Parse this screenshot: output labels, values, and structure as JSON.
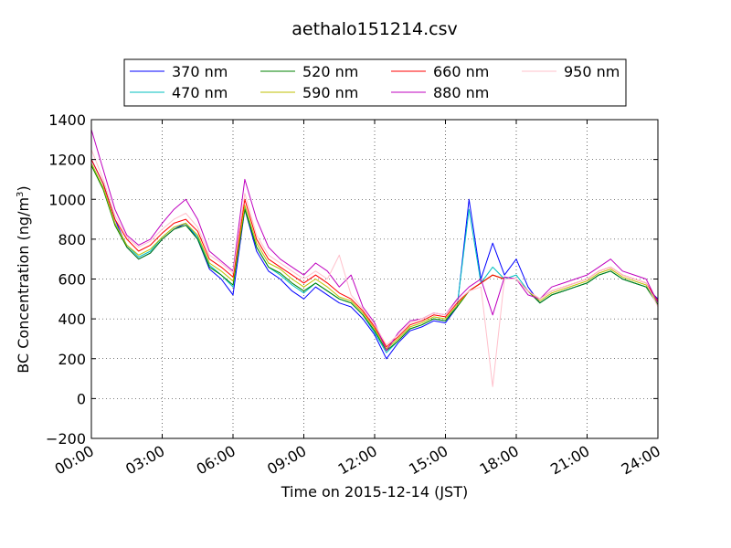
{
  "chart_data": {
    "type": "line",
    "title": "aethalo151214.csv",
    "xlabel": "Time on 2015-12-14 (JST)",
    "ylabel_main": "BC Concentration (ng/m",
    "ylabel_sup": "3",
    "ylabel_end": ")",
    "xlim": [
      0,
      24
    ],
    "ylim": [
      -200,
      1400
    ],
    "grid": true,
    "legend_position": "top",
    "x_tick_labels": [
      "00:00",
      "03:00",
      "06:00",
      "09:00",
      "12:00",
      "15:00",
      "18:00",
      "21:00",
      "24:00"
    ],
    "x_tick_values": [
      0,
      3,
      6,
      9,
      12,
      15,
      18,
      21,
      24
    ],
    "y_tick_values": [
      -200,
      0,
      200,
      400,
      600,
      800,
      1000,
      1200,
      1400
    ],
    "y_tick_labels": [
      "−200",
      "0",
      "200",
      "400",
      "600",
      "800",
      "1000",
      "1200",
      "1400"
    ],
    "legend": [
      "370 nm",
      "470 nm",
      "520 nm",
      "590 nm",
      "660 nm",
      "880 nm",
      "950 nm"
    ],
    "series": [
      {
        "name": "370 nm",
        "color": "#0000ff",
        "x": [
          0,
          0.5,
          1,
          1.5,
          2,
          2.5,
          3,
          3.5,
          4,
          4.5,
          5,
          5.5,
          6,
          6.5,
          7,
          7.5,
          8,
          8.5,
          9,
          9.5,
          10,
          10.5,
          11,
          11.5,
          12,
          12.5,
          13,
          13.5,
          14,
          14.5,
          15,
          15.5,
          16,
          16.5,
          17,
          17.5,
          18,
          18.5,
          19,
          19.5,
          20,
          20.5,
          21,
          21.5,
          22,
          22.5,
          23,
          23.5,
          24
        ],
        "values": [
          1200,
          1080,
          900,
          760,
          700,
          730,
          800,
          850,
          880,
          800,
          650,
          600,
          520,
          950,
          740,
          640,
          600,
          540,
          500,
          560,
          520,
          480,
          460,
          400,
          320,
          200,
          280,
          340,
          360,
          390,
          380,
          460,
          1000,
          600,
          780,
          620,
          700,
          560,
          480,
          520,
          540,
          560,
          580,
          620,
          640,
          600,
          580,
          560,
          500
        ]
      },
      {
        "name": "470 nm",
        "color": "#00bfbf",
        "x": [
          0,
          0.5,
          1,
          1.5,
          2,
          2.5,
          3,
          3.5,
          4,
          4.5,
          5,
          5.5,
          6,
          6.5,
          7,
          7.5,
          8,
          8.5,
          9,
          9.5,
          10,
          10.5,
          11,
          11.5,
          12,
          12.5,
          13,
          13.5,
          14,
          14.5,
          15,
          15.5,
          16,
          16.5,
          17,
          17.5,
          18,
          18.5,
          19,
          19.5,
          20,
          20.5,
          21,
          21.5,
          22,
          22.5,
          23,
          23.5,
          24
        ],
        "values": [
          1180,
          1060,
          880,
          770,
          710,
          740,
          810,
          860,
          880,
          810,
          670,
          620,
          560,
          960,
          760,
          660,
          620,
          570,
          530,
          580,
          540,
          500,
          480,
          420,
          330,
          230,
          290,
          350,
          370,
          400,
          390,
          470,
          950,
          580,
          660,
          600,
          620,
          540,
          480,
          520,
          540,
          560,
          580,
          620,
          640,
          600,
          580,
          560,
          480
        ]
      },
      {
        "name": "520 nm",
        "color": "#008000",
        "x": [
          0,
          0.5,
          1,
          1.5,
          2,
          2.5,
          3,
          3.5,
          4,
          4.5,
          5,
          5.5,
          6,
          6.5,
          7,
          7.5,
          8,
          8.5,
          9,
          9.5,
          10,
          10.5,
          11,
          11.5,
          12,
          12.5,
          13,
          13.5,
          14,
          14.5,
          15,
          15.5,
          16,
          16.5,
          17,
          17.5,
          18,
          18.5,
          19,
          19.5,
          20,
          20.5,
          21,
          21.5,
          22,
          22.5,
          23,
          23.5,
          24
        ],
        "values": [
          1170,
          1050,
          870,
          760,
          700,
          730,
          800,
          850,
          870,
          800,
          660,
          620,
          570,
          950,
          760,
          660,
          630,
          580,
          540,
          580,
          540,
          500,
          480,
          420,
          340,
          240,
          290,
          350,
          370,
          400,
          390,
          460,
          540,
          580,
          620,
          600,
          600,
          540,
          480,
          520,
          540,
          560,
          580,
          620,
          640,
          600,
          580,
          560,
          470
        ]
      },
      {
        "name": "590 nm",
        "color": "#bfbf00",
        "x": [
          0,
          0.5,
          1,
          1.5,
          2,
          2.5,
          3,
          3.5,
          4,
          4.5,
          5,
          5.5,
          6,
          6.5,
          7,
          7.5,
          8,
          8.5,
          9,
          9.5,
          10,
          10.5,
          11,
          11.5,
          12,
          12.5,
          13,
          13.5,
          14,
          14.5,
          15,
          15.5,
          16,
          16.5,
          17,
          17.5,
          18,
          18.5,
          19,
          19.5,
          20,
          20.5,
          21,
          21.5,
          22,
          22.5,
          23,
          23.5,
          24
        ],
        "values": [
          1180,
          1060,
          880,
          770,
          720,
          750,
          810,
          860,
          880,
          820,
          680,
          640,
          590,
          970,
          780,
          680,
          650,
          600,
          560,
          600,
          560,
          510,
          490,
          430,
          350,
          250,
          300,
          360,
          380,
          410,
          400,
          470,
          540,
          580,
          620,
          600,
          600,
          540,
          490,
          530,
          550,
          570,
          590,
          630,
          650,
          610,
          590,
          570,
          480
        ]
      },
      {
        "name": "660 nm",
        "color": "#ff0000",
        "x": [
          0,
          0.5,
          1,
          1.5,
          2,
          2.5,
          3,
          3.5,
          4,
          4.5,
          5,
          5.5,
          6,
          6.5,
          7,
          7.5,
          8,
          8.5,
          9,
          9.5,
          10,
          10.5,
          11,
          11.5,
          12,
          12.5,
          13,
          13.5,
          14,
          14.5,
          15,
          15.5,
          16,
          16.5,
          17,
          17.5,
          18,
          18.5,
          19,
          19.5,
          20,
          20.5,
          21,
          21.5,
          22,
          22.5,
          23,
          23.5,
          24
        ],
        "values": [
          1200,
          1080,
          900,
          800,
          740,
          770,
          830,
          880,
          900,
          840,
          700,
          660,
          610,
          1000,
          800,
          700,
          660,
          620,
          580,
          620,
          580,
          530,
          500,
          440,
          360,
          260,
          310,
          370,
          390,
          420,
          410,
          480,
          540,
          580,
          620,
          600,
          600,
          540,
          500,
          540,
          560,
          580,
          600,
          640,
          660,
          620,
          600,
          580,
          490
        ]
      },
      {
        "name": "880 nm",
        "color": "#bf00bf",
        "x": [
          0,
          0.5,
          1,
          1.5,
          2,
          2.5,
          3,
          3.5,
          4,
          4.5,
          5,
          5.5,
          6,
          6.5,
          7,
          7.5,
          8,
          8.5,
          9,
          9.5,
          10,
          10.5,
          11,
          11.5,
          12,
          12.5,
          13,
          13.5,
          14,
          14.5,
          15,
          15.5,
          16,
          16.5,
          17,
          17.5,
          18,
          18.5,
          19,
          19.5,
          20,
          20.5,
          21,
          21.5,
          22,
          22.5,
          23,
          23.5,
          24
        ],
        "values": [
          1350,
          1150,
          950,
          820,
          770,
          800,
          880,
          950,
          1000,
          900,
          740,
          690,
          640,
          1100,
          900,
          760,
          700,
          660,
          620,
          680,
          640,
          560,
          620,
          460,
          380,
          240,
          330,
          390,
          400,
          430,
          420,
          500,
          560,
          600,
          420,
          610,
          600,
          520,
          500,
          560,
          580,
          600,
          620,
          660,
          700,
          640,
          620,
          600,
          480
        ]
      },
      {
        "name": "950 nm",
        "color": "#ffc0cb",
        "x": [
          0,
          0.5,
          1,
          1.5,
          2,
          2.5,
          3,
          3.5,
          4,
          4.5,
          5,
          5.5,
          6,
          6.5,
          7,
          7.5,
          8,
          8.5,
          9,
          9.5,
          10,
          10.5,
          11,
          11.5,
          12,
          12.5,
          13,
          13.5,
          14,
          14.5,
          15,
          15.5,
          16,
          16.5,
          17,
          17.5,
          18,
          18.5,
          19,
          19.5,
          20,
          20.5,
          21,
          21.5,
          22,
          22.5,
          23,
          23.5,
          24
        ],
        "values": [
          1250,
          1100,
          920,
          810,
          760,
          790,
          850,
          900,
          930,
          860,
          720,
          680,
          630,
          1030,
          820,
          720,
          680,
          640,
          600,
          640,
          600,
          720,
          520,
          450,
          370,
          270,
          320,
          380,
          400,
          430,
          420,
          490,
          540,
          560,
          60,
          600,
          600,
          540,
          500,
          540,
          560,
          580,
          600,
          640,
          660,
          620,
          600,
          580,
          460
        ]
      }
    ]
  }
}
